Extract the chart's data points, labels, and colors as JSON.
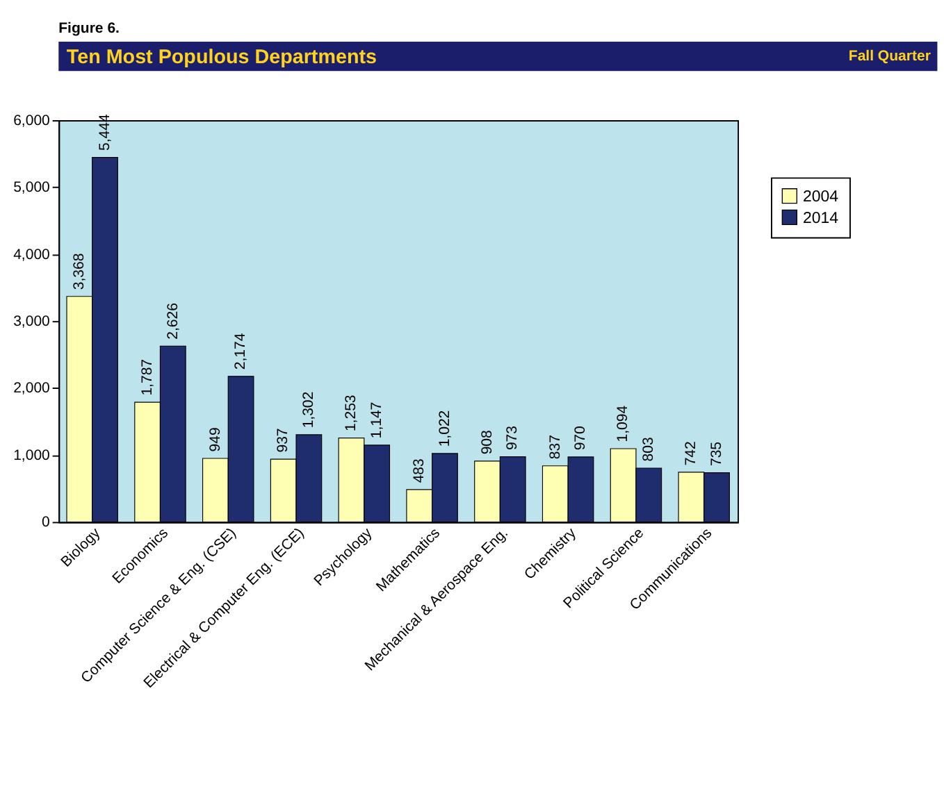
{
  "chart_data": {
    "type": "bar",
    "title": "Ten Most Populous Departments",
    "annotations": [
      "Figure 6.",
      "Fall Quarter"
    ],
    "categories": [
      "Biology",
      "Economics",
      "Computer Science & Eng. (CSE)",
      "Electrical & Computer Eng. (ECE)",
      "Psychology",
      "Mathematics",
      "Mechanical & Aerospace Eng.",
      "Chemistry",
      "Political Science",
      "Communications"
    ],
    "series": [
      {
        "name": "2004",
        "color": "#ffffb3",
        "values": [
          3368,
          1787,
          949,
          937,
          1253,
          483,
          908,
          837,
          1094,
          742
        ],
        "value_labels": [
          "3,368",
          "1,787",
          "949",
          "937",
          "1,253",
          "483",
          "908",
          "837",
          "1,094",
          "742"
        ]
      },
      {
        "name": "2014",
        "color": "#1f2d6e",
        "values": [
          5444,
          2626,
          2174,
          1302,
          1147,
          1022,
          973,
          970,
          803,
          735
        ],
        "value_labels": [
          "5,444",
          "2,626",
          "2,174",
          "1,302",
          "1,147",
          "1,022",
          "973",
          "970",
          "803",
          "735"
        ]
      }
    ],
    "ylim": [
      0,
      6000
    ],
    "yticks": [
      {
        "value": 0,
        "label": "0"
      },
      {
        "value": 1000,
        "label": "1,000"
      },
      {
        "value": 2000,
        "label": "2,000"
      },
      {
        "value": 3000,
        "label": "3,000"
      },
      {
        "value": 4000,
        "label": "4,000"
      },
      {
        "value": 5000,
        "label": "5,000"
      },
      {
        "value": 6000,
        "label": "6,000"
      }
    ],
    "grid": false,
    "legend": "right"
  }
}
